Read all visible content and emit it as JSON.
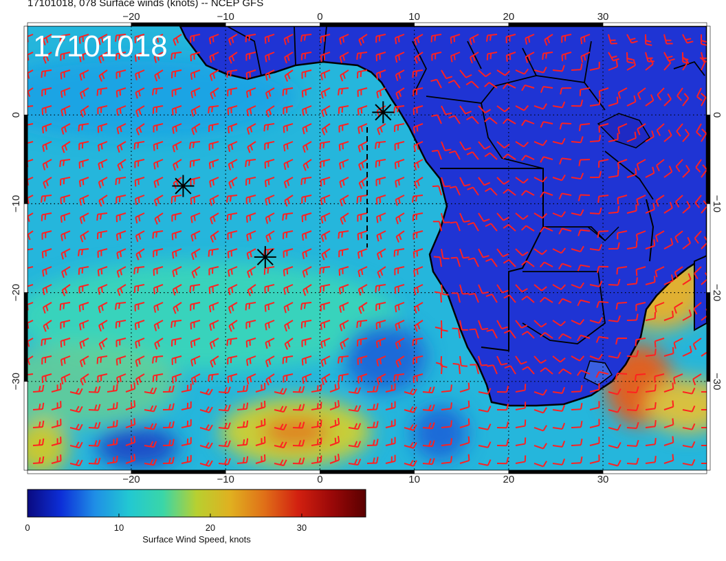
{
  "title": "17101018, 078 Surface winds (knots) -- NCEP GFS",
  "stamp": "17101018",
  "map": {
    "lon_range": [
      -31,
      41
    ],
    "lat_range": [
      10,
      -40
    ],
    "lon_ticks": [
      -20,
      -10,
      0,
      10,
      20,
      30
    ],
    "lat_ticks": [
      0,
      -10,
      -20,
      -30
    ],
    "lon_tick_labels": [
      "−20",
      "−10",
      "0",
      "10",
      "20",
      "30"
    ],
    "lat_tick_labels": [
      "0",
      "−10",
      "−20",
      "−30"
    ],
    "storm_markers": [
      {
        "lon": -14.5,
        "lat": -8.0
      },
      {
        "lon": -5.8,
        "lat": -16.0
      },
      {
        "lon": 6.7,
        "lat": 0.3
      }
    ],
    "barb_color": "#ff2020",
    "land_color": "#1e2fd6",
    "ocean_color": "#27b8dc"
  },
  "colorbar": {
    "min": 0,
    "max": 37,
    "ticks": [
      0,
      10,
      20,
      30
    ],
    "tick_labels": [
      "0",
      "10",
      "20",
      "30"
    ],
    "label": "Surface Wind Speed, knots",
    "colors": [
      "#0a0a80",
      "#0d2fd8",
      "#1f8fe6",
      "#22c8d2",
      "#3ad6a8",
      "#b8d030",
      "#e0b020",
      "#e07018",
      "#d22010",
      "#9a0808",
      "#5a0000"
    ]
  },
  "chart_data": {
    "type": "heatmap",
    "title": "17101018, 078 Surface winds (knots) -- NCEP GFS",
    "colorbar_label": "Surface Wind Speed, knots",
    "colorbar_range": [
      0,
      37
    ],
    "lon_range": [
      -31,
      41
    ],
    "lat_range": [
      -40,
      10
    ],
    "storm_markers": [
      [
        -14.5,
        -8.0
      ],
      [
        -5.8,
        -16.0
      ],
      [
        6.7,
        0.3
      ]
    ]
  }
}
